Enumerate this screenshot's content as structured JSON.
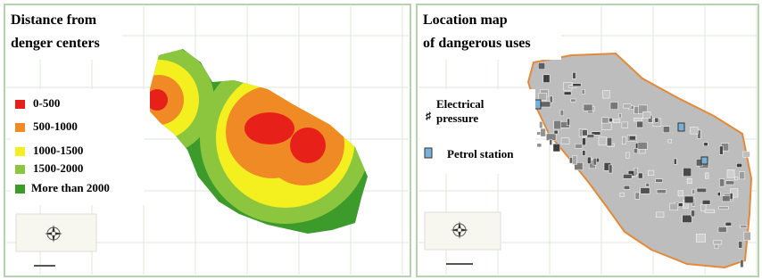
{
  "left_panel": {
    "title": [
      "Distance from",
      "denger centers"
    ],
    "legend": [
      {
        "label": "0-500",
        "color": "#e8201a"
      },
      {
        "label": "500-1000",
        "color": "#f08a24"
      },
      {
        "label": "1000-1500",
        "color": "#f4f020"
      },
      {
        "label": "1500-2000",
        "color": "#8cc63e"
      },
      {
        "label": "More than 2000",
        "color": "#3d9b2c"
      }
    ]
  },
  "right_panel": {
    "title": [
      "Location map",
      "of dangerous uses"
    ],
    "legend": [
      {
        "label": [
          "Electrical",
          "pressure"
        ]
      },
      {
        "label": [
          "Petrol station"
        ]
      }
    ]
  }
}
